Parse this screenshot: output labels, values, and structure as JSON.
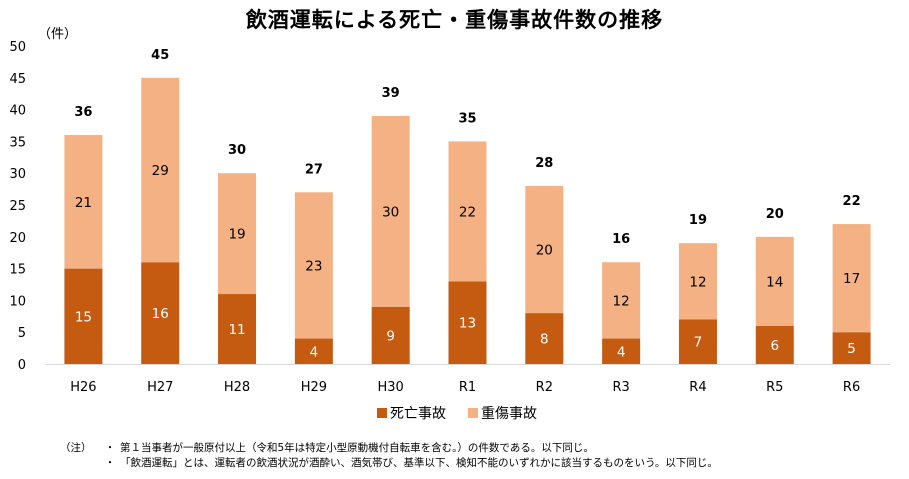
{
  "title": "飲酒運転による死亡・重傷事故件数の推移",
  "chart_data": {
    "type": "bar",
    "stacked": true,
    "unit_label": "（件）",
    "categories": [
      "H26",
      "H27",
      "H28",
      "H29",
      "H30",
      "R1",
      "R2",
      "R3",
      "R4",
      "R5",
      "R6"
    ],
    "series": [
      {
        "name": "死亡事故",
        "color": "#c55a11",
        "label_color": "#ffffff",
        "values": [
          15,
          16,
          11,
          4,
          9,
          13,
          8,
          4,
          7,
          6,
          5
        ]
      },
      {
        "name": "重傷事故",
        "color": "#f4b183",
        "label_color": "#000000",
        "values": [
          21,
          29,
          19,
          23,
          30,
          22,
          20,
          12,
          12,
          14,
          17
        ]
      }
    ],
    "totals": [
      36,
      45,
      30,
      27,
      39,
      35,
      28,
      16,
      19,
      20,
      22
    ],
    "ylim": [
      0,
      50
    ],
    "yticks": [
      0,
      5,
      10,
      15,
      20,
      25,
      30,
      35,
      40,
      45,
      50
    ],
    "grid": false,
    "legend_position": "bottom"
  },
  "notes": {
    "prefix": "（注）",
    "items": [
      "第１当事者が一般原付以上（令和5年は特定小型原動機付自転車を含む。）の件数である。以下同じ。",
      "「飲酒運転」とは、運転者の飲酒状況が酒酔い、酒気帯び、基準以下、検知不能のいずれかに該当するものをいう。以下同じ。"
    ],
    "bullet": "・"
  }
}
